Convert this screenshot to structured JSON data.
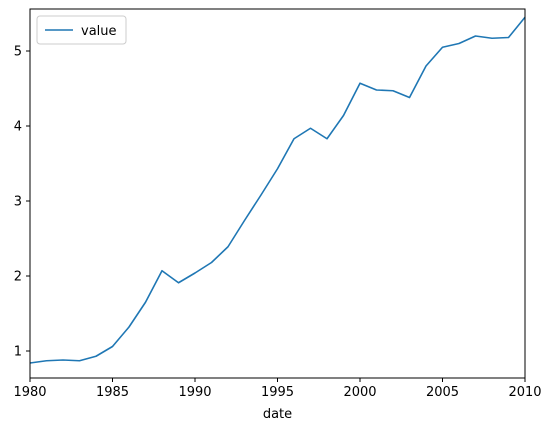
{
  "chart_data": {
    "type": "line",
    "title": "",
    "xlabel": "date",
    "ylabel": "",
    "xlim": [
      1980,
      2010
    ],
    "ylim": [
      0.64,
      5.56
    ],
    "x_ticks": [
      "1980",
      "1985",
      "1990",
      "1995",
      "2000",
      "2005",
      "2010"
    ],
    "y_ticks": [
      "1",
      "2",
      "3",
      "4",
      "5"
    ],
    "grid": false,
    "legend_position": "top-left",
    "series": [
      {
        "name": "value",
        "color": "#1f77b4",
        "x": [
          1980,
          1981,
          1982,
          1983,
          1984,
          1985,
          1986,
          1987,
          1988,
          1989,
          1990,
          1991,
          1992,
          1993,
          1994,
          1995,
          1996,
          1997,
          1998,
          1999,
          2000,
          2001,
          2002,
          2003,
          2004,
          2005,
          2006,
          2007,
          2008,
          2009,
          2010
        ],
        "values": [
          0.84,
          0.87,
          0.88,
          0.87,
          0.93,
          1.06,
          1.32,
          1.65,
          2.07,
          1.91,
          2.04,
          2.18,
          2.39,
          2.74,
          3.08,
          3.43,
          3.83,
          3.97,
          3.83,
          4.14,
          4.57,
          4.48,
          4.47,
          4.38,
          4.8,
          5.05,
          5.1,
          5.2,
          5.17,
          5.18,
          5.45
        ]
      }
    ]
  }
}
